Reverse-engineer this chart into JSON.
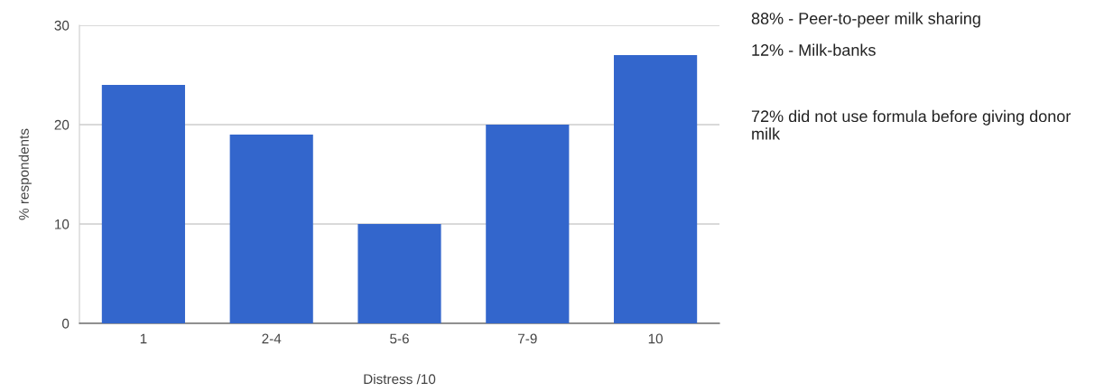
{
  "chart_data": {
    "type": "bar",
    "xlabel": "Distress /10",
    "ylabel": "% respondents",
    "categories": [
      "1",
      "2-4",
      "5-6",
      "7-9",
      "10"
    ],
    "values": [
      24,
      19,
      10,
      20,
      27
    ],
    "color": "#3366cc",
    "ylim": [
      0,
      30
    ],
    "yticks": [
      0,
      10,
      20,
      30
    ],
    "grid": "y",
    "legend": false,
    "annotations": [
      "88% - Peer-to-peer milk sharing",
      "12% - Milk-banks",
      "72% did not use formula before giving donor milk"
    ]
  }
}
